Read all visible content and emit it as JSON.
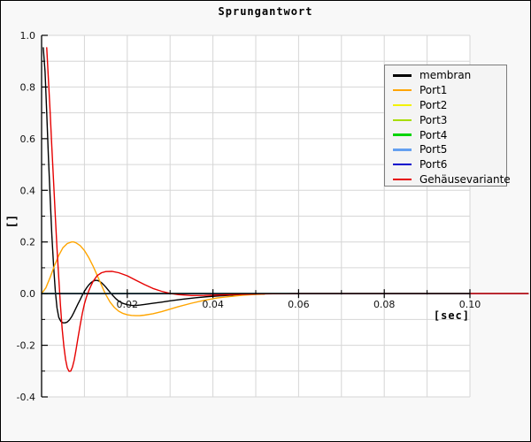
{
  "chart_data": {
    "type": "line",
    "title": "Sprungantwort",
    "xlabel": "[sec]",
    "ylabel": "[]",
    "xlim": [
      0,
      0.1
    ],
    "ylim": [
      -0.4,
      1.0
    ],
    "x_major_ticks": {
      "values": [
        0.02,
        0.04,
        0.06,
        0.08,
        0.1
      ],
      "labels": [
        "0.02",
        "0.04",
        "0.06",
        "0.08",
        "0.10"
      ]
    },
    "x_minor_ticks": [
      0.01,
      0.03,
      0.05,
      0.07,
      0.09
    ],
    "y_major_ticks": {
      "values": [
        1.0,
        0.8,
        0.6,
        0.4,
        0.2,
        0.0,
        -0.2,
        -0.4
      ],
      "labels": [
        "1.0",
        "0.8",
        "0.6",
        "0.4",
        "0.2",
        "0.0",
        "-0.2",
        "-0.4"
      ]
    },
    "y_minor_ticks": [
      0.9,
      0.7,
      0.5,
      0.3,
      0.1,
      -0.1,
      -0.3
    ],
    "grid": {
      "x_step": 0.01,
      "y_step": 0.1,
      "color": "#d6d6d6",
      "on": true
    },
    "plot_bg": "#ffffff",
    "figure_bg": "#f8f8f8",
    "axis_color": "#000000",
    "legend_position": "upper right",
    "x_data_max": 0.1136,
    "series": [
      {
        "name": "membran",
        "color": "#000000",
        "points": [
          [
            0.0004,
            0.952
          ],
          [
            0.0008,
            0.86
          ],
          [
            0.0012,
            0.7
          ],
          [
            0.0016,
            0.53
          ],
          [
            0.002,
            0.37
          ],
          [
            0.0024,
            0.225
          ],
          [
            0.0028,
            0.105
          ],
          [
            0.0032,
            0.01
          ],
          [
            0.0036,
            -0.055
          ],
          [
            0.004,
            -0.092
          ],
          [
            0.0045,
            -0.108
          ],
          [
            0.005,
            -0.113
          ],
          [
            0.0055,
            -0.113
          ],
          [
            0.006,
            -0.11
          ],
          [
            0.0065,
            -0.102
          ],
          [
            0.007,
            -0.09
          ],
          [
            0.0075,
            -0.074
          ],
          [
            0.008,
            -0.057
          ],
          [
            0.0085,
            -0.04
          ],
          [
            0.009,
            -0.023
          ],
          [
            0.0095,
            -0.006
          ],
          [
            0.01,
            0.009
          ],
          [
            0.0105,
            0.022
          ],
          [
            0.011,
            0.033
          ],
          [
            0.0115,
            0.042
          ],
          [
            0.012,
            0.048
          ],
          [
            0.0125,
            0.051
          ],
          [
            0.013,
            0.051
          ],
          [
            0.0135,
            0.048
          ],
          [
            0.014,
            0.042
          ],
          [
            0.0145,
            0.034
          ],
          [
            0.015,
            0.025
          ],
          [
            0.0155,
            0.015
          ],
          [
            0.016,
            0.005
          ],
          [
            0.0165,
            -0.005
          ],
          [
            0.017,
            -0.014
          ],
          [
            0.0175,
            -0.022
          ],
          [
            0.018,
            -0.029
          ],
          [
            0.019,
            -0.038
          ],
          [
            0.02,
            -0.043
          ],
          [
            0.021,
            -0.0455
          ],
          [
            0.022,
            -0.046
          ],
          [
            0.023,
            -0.0445
          ],
          [
            0.024,
            -0.042
          ],
          [
            0.026,
            -0.0375
          ],
          [
            0.028,
            -0.033
          ],
          [
            0.03,
            -0.028
          ],
          [
            0.033,
            -0.0215
          ],
          [
            0.036,
            -0.016
          ],
          [
            0.039,
            -0.0115
          ],
          [
            0.042,
            -0.008
          ],
          [
            0.045,
            -0.0055
          ],
          [
            0.048,
            -0.0035
          ],
          [
            0.051,
            -0.002
          ],
          [
            0.052,
            -0.0015
          ]
        ]
      },
      {
        "name": "Port1",
        "color": "#ffa500",
        "points": [
          [
            0.0,
            0.0
          ],
          [
            0.001,
            0.022
          ],
          [
            0.002,
            0.063
          ],
          [
            0.003,
            0.108
          ],
          [
            0.004,
            0.148
          ],
          [
            0.005,
            0.178
          ],
          [
            0.006,
            0.194
          ],
          [
            0.007,
            0.2
          ],
          [
            0.0075,
            0.2
          ],
          [
            0.008,
            0.197
          ],
          [
            0.009,
            0.186
          ],
          [
            0.01,
            0.167
          ],
          [
            0.011,
            0.14
          ],
          [
            0.012,
            0.107
          ],
          [
            0.013,
            0.07
          ],
          [
            0.014,
            0.032
          ],
          [
            0.0145,
            0.013
          ],
          [
            0.015,
            -0.004
          ],
          [
            0.016,
            -0.033
          ],
          [
            0.017,
            -0.054
          ],
          [
            0.018,
            -0.068
          ],
          [
            0.019,
            -0.077
          ],
          [
            0.02,
            -0.082
          ],
          [
            0.021,
            -0.0845
          ],
          [
            0.022,
            -0.0855
          ],
          [
            0.023,
            -0.085
          ],
          [
            0.024,
            -0.0835
          ],
          [
            0.026,
            -0.078
          ],
          [
            0.028,
            -0.07
          ],
          [
            0.03,
            -0.06
          ],
          [
            0.032,
            -0.05
          ],
          [
            0.035,
            -0.037
          ],
          [
            0.038,
            -0.026
          ],
          [
            0.041,
            -0.017
          ],
          [
            0.044,
            -0.011
          ],
          [
            0.047,
            -0.006
          ],
          [
            0.05,
            -0.003
          ],
          [
            0.052,
            -0.002
          ]
        ]
      },
      {
        "name": "Port2",
        "color": "#f2f200",
        "points": [
          [
            0.0,
            0.0
          ],
          [
            0.1136,
            0.0
          ]
        ]
      },
      {
        "name": "Port3",
        "color": "#a8dd00",
        "points": [
          [
            0.0,
            0.0
          ],
          [
            0.1136,
            0.0
          ]
        ]
      },
      {
        "name": "Port4",
        "color": "#00d400",
        "points": [
          [
            0.0,
            0.0
          ],
          [
            0.1136,
            0.0
          ]
        ]
      },
      {
        "name": "Port5",
        "color": "#64a0f0",
        "points": [
          [
            0.0,
            0.0
          ],
          [
            0.1136,
            0.0
          ]
        ]
      },
      {
        "name": "Port6",
        "color": "#0000cc",
        "points": [
          [
            0.0,
            0.0
          ],
          [
            0.1136,
            0.0
          ]
        ]
      },
      {
        "name": "Gehäusevariante",
        "color": "#e60000",
        "points": [
          [
            0.0012,
            0.952
          ],
          [
            0.0016,
            0.83
          ],
          [
            0.002,
            0.7
          ],
          [
            0.0024,
            0.565
          ],
          [
            0.0028,
            0.43
          ],
          [
            0.0032,
            0.3
          ],
          [
            0.0036,
            0.175
          ],
          [
            0.004,
            0.06
          ],
          [
            0.0044,
            -0.045
          ],
          [
            0.0048,
            -0.135
          ],
          [
            0.0052,
            -0.205
          ],
          [
            0.0056,
            -0.255
          ],
          [
            0.006,
            -0.287
          ],
          [
            0.0064,
            -0.301
          ],
          [
            0.0068,
            -0.3
          ],
          [
            0.0072,
            -0.285
          ],
          [
            0.0076,
            -0.258
          ],
          [
            0.008,
            -0.222
          ],
          [
            0.0085,
            -0.172
          ],
          [
            0.009,
            -0.122
          ],
          [
            0.0095,
            -0.077
          ],
          [
            0.01,
            -0.04
          ],
          [
            0.0105,
            -0.012
          ],
          [
            0.011,
            0.01
          ],
          [
            0.0115,
            0.03
          ],
          [
            0.012,
            0.047
          ],
          [
            0.013,
            0.07
          ],
          [
            0.014,
            0.081
          ],
          [
            0.015,
            0.0855
          ],
          [
            0.0165,
            0.086
          ],
          [
            0.018,
            0.081
          ],
          [
            0.02,
            0.069
          ],
          [
            0.022,
            0.052
          ],
          [
            0.024,
            0.035
          ],
          [
            0.026,
            0.02
          ],
          [
            0.028,
            0.009
          ],
          [
            0.03,
            0.001
          ],
          [
            0.032,
            -0.004
          ],
          [
            0.035,
            -0.0075
          ],
          [
            0.038,
            -0.007
          ],
          [
            0.042,
            -0.005
          ],
          [
            0.046,
            -0.003
          ],
          [
            0.05,
            -0.0015
          ],
          [
            0.054,
            -0.0005
          ],
          [
            0.06,
            0.0
          ],
          [
            0.1136,
            0.0
          ]
        ]
      }
    ]
  }
}
